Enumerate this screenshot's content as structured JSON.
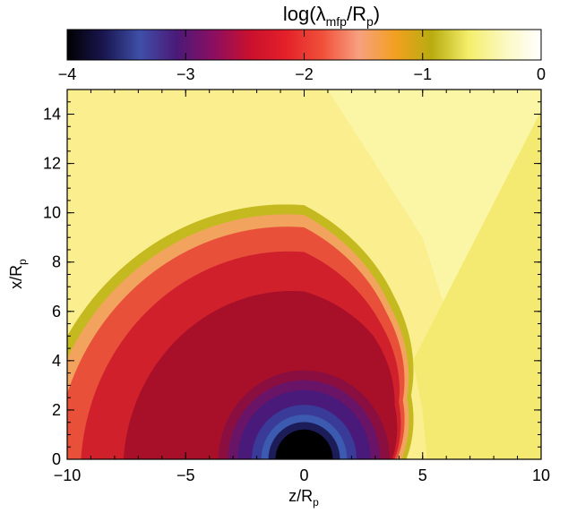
{
  "chart_data": {
    "type": "heatmap",
    "colorbar": {
      "title_main": "log(λ",
      "title_sub1": "mfp",
      "title_mid": "/R",
      "title_sub2": "p",
      "title_end": ")",
      "range": [
        -4,
        0
      ],
      "ticks": [
        -4,
        -3,
        -2,
        -1,
        0
      ],
      "tick_labels": [
        "−4",
        "−3",
        "−2",
        "−1",
        "0"
      ],
      "colors": [
        "#000000",
        "#1a1650",
        "#3f4fa8",
        "#4a1a78",
        "#8a0f62",
        "#c8102e",
        "#e4202a",
        "#f0503a",
        "#f7a080",
        "#f2a020",
        "#b8ac10",
        "#f4ee6a",
        "#fbf8c0",
        "#ffffff"
      ]
    },
    "xlabel_main": "z/R",
    "xlabel_sub": "p",
    "ylabel_main": "x/R",
    "ylabel_sub": "p",
    "xlim": [
      -10,
      10
    ],
    "ylim": [
      0,
      15
    ],
    "xticks": [
      -10,
      -5,
      0,
      5,
      10
    ],
    "xtick_labels": [
      "−10",
      "−5",
      "0",
      "5",
      "10"
    ],
    "yticks": [
      0,
      2,
      4,
      6,
      8,
      10,
      12,
      14
    ],
    "ytick_labels": [
      "0",
      "2",
      "4",
      "6",
      "8",
      "10",
      "12",
      "14"
    ],
    "field": {
      "center": [
        0,
        0
      ],
      "layers": [
        {
          "level": -0.5,
          "color": "#fbf5a6",
          "boundary": [
            [
              6.7,
              0
            ],
            [
              6.5,
              3
            ],
            [
              6.0,
              6
            ],
            [
              5.0,
              9
            ],
            [
              3.0,
              12
            ],
            [
              1.0,
              15
            ]
          ]
        },
        {
          "level": -0.9,
          "color": "#f4ea72",
          "boundary": [
            [
              5.2,
              0
            ],
            [
              5.0,
              2
            ],
            [
              4.6,
              4
            ]
          ]
        },
        {
          "level": -1.3,
          "color": "#c4ba20",
          "radius_profile": [
            [
              0,
              4.3
            ],
            [
              30,
              5.2
            ],
            [
              60,
              7.6
            ],
            [
              90,
              10.3
            ]
          ]
        },
        {
          "level": -1.6,
          "color": "#f2a45e",
          "radius_profile": [
            [
              0,
              4.1
            ],
            [
              30,
              5.0
            ],
            [
              60,
              7.2
            ],
            [
              90,
              9.9
            ]
          ]
        },
        {
          "level": -1.9,
          "color": "#e8503a",
          "radius_profile": [
            [
              0,
              3.9
            ],
            [
              30,
              4.8
            ],
            [
              60,
              6.9
            ],
            [
              90,
              9.4
            ]
          ]
        },
        {
          "level": -2.2,
          "color": "#d0202c",
          "radius_profile": [
            [
              0,
              3.8
            ],
            [
              30,
              4.6
            ],
            [
              60,
              6.4
            ],
            [
              90,
              8.4
            ]
          ]
        },
        {
          "level": -2.5,
          "color": "#a8102a",
          "radius_profile": [
            [
              0,
              3.7
            ],
            [
              30,
              4.4
            ],
            [
              60,
              5.8
            ],
            [
              90,
              6.8
            ]
          ]
        },
        {
          "level": -2.75,
          "color": "#8a0f40",
          "radius": 3.6
        },
        {
          "level": -3.0,
          "color": "#6a1468",
          "radius": 3.2
        },
        {
          "level": -3.2,
          "color": "#4a1a7a",
          "radius": 2.8
        },
        {
          "level": -3.4,
          "color": "#3a3a98",
          "radius": 2.2
        },
        {
          "level": -3.6,
          "color": "#3c5ab0",
          "radius": 1.8
        },
        {
          "level": -3.8,
          "color": "#1c1c58",
          "radius": 1.5
        },
        {
          "level": -4.0,
          "color": "#000000",
          "radius": 1.2
        }
      ]
    }
  }
}
